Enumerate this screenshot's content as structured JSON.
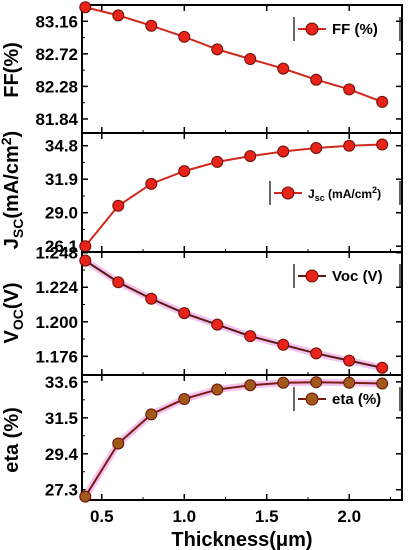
{
  "chart_data": [
    {
      "type": "line",
      "ylabel": "FF(%)",
      "ylim": [
        81.65,
        83.38
      ],
      "yticks": [
        81.84,
        82.28,
        82.72,
        83.16
      ],
      "ytick_labels": [
        "81.84",
        "82.28",
        "82.72",
        "83.16"
      ],
      "legend": "FF (%)",
      "legend_position": "top-right",
      "marker_color": "#e8231a",
      "line_color": "#d0281e",
      "series": [
        {
          "name": "FF (%)",
          "x": [
            0.4,
            0.6,
            0.8,
            1.0,
            1.2,
            1.4,
            1.6,
            1.8,
            2.0,
            2.2
          ],
          "values": [
            83.35,
            83.24,
            83.1,
            82.95,
            82.78,
            82.65,
            82.52,
            82.37,
            82.24,
            82.07
          ]
        }
      ]
    },
    {
      "type": "line",
      "ylabel": "JSC(mA/cm2)",
      "ylim": [
        25.6,
        35.9
      ],
      "yticks": [
        26.1,
        29.0,
        31.9,
        34.8
      ],
      "ytick_labels": [
        "26.1",
        "29.0",
        "31.9",
        "34.8"
      ],
      "legend": "Jsc (mA/cm2)",
      "legend_position": "top-right",
      "marker_color": "#e8231a",
      "line_color": "#d0281e",
      "series": [
        {
          "name": "Jsc (mA/cm2)",
          "x": [
            0.4,
            0.6,
            0.8,
            1.0,
            1.2,
            1.4,
            1.6,
            1.8,
            2.0,
            2.2
          ],
          "values": [
            26.1,
            29.6,
            31.5,
            32.6,
            33.4,
            33.9,
            34.3,
            34.6,
            34.8,
            34.9
          ]
        }
      ]
    },
    {
      "type": "line",
      "ylabel": "VOC(V)",
      "ylim": [
        1.163,
        1.2485
      ],
      "yticks": [
        1.176,
        1.2,
        1.224,
        1.248
      ],
      "ytick_labels": [
        "1.176",
        "1.200",
        "1.224",
        "1.248"
      ],
      "legend": "Voc (V)",
      "legend_position": "top-right",
      "marker_color": "#e8231a",
      "line_color": "#5a1a12",
      "series": [
        {
          "name": "Voc (V)",
          "x": [
            0.4,
            0.6,
            0.8,
            1.0,
            1.2,
            1.4,
            1.6,
            1.8,
            2.0,
            2.2
          ],
          "values": [
            1.2425,
            1.2275,
            1.216,
            1.206,
            1.198,
            1.19,
            1.184,
            1.178,
            1.173,
            1.168
          ]
        }
      ]
    },
    {
      "type": "line",
      "ylabel": "eta (%)",
      "xlabel": "Thickness(μm)",
      "xlim": [
        0.38,
        2.32
      ],
      "xticks": [
        0.5,
        1.0,
        1.5,
        2.0
      ],
      "xtick_labels": [
        "0.5",
        "1.0",
        "1.5",
        "2.0"
      ],
      "ylim": [
        26.7,
        34.0
      ],
      "yticks": [
        27.3,
        29.4,
        31.5,
        33.6
      ],
      "ytick_labels": [
        "27.3",
        "29.4",
        "31.5",
        "33.6"
      ],
      "legend": "eta (%)",
      "legend_position": "top-right",
      "marker_color": "#a0581b",
      "line_color": "#7a1c10",
      "series": [
        {
          "name": "eta (%)",
          "x": [
            0.4,
            0.6,
            0.8,
            1.0,
            1.2,
            1.4,
            1.6,
            1.8,
            2.0,
            2.2
          ],
          "values": [
            26.9,
            30.0,
            31.7,
            32.6,
            33.15,
            33.4,
            33.55,
            33.58,
            33.55,
            33.5
          ]
        }
      ]
    }
  ]
}
